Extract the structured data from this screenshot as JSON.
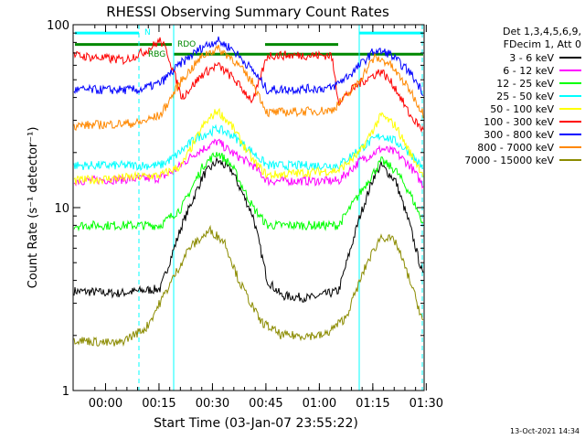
{
  "chart_data": {
    "type": "line",
    "title": "RHESSI Observing Summary Count Rates",
    "xlabel": "Start Time (03-Jan-07 23:55:22)",
    "ylabel": "Count Rate (s⁻¹ detector⁻¹)",
    "yscale": "log",
    "ylim": [
      1,
      100
    ],
    "xlim_minutes": [
      -4.5,
      94
    ],
    "x_ticks": [
      {
        "label": "00:00",
        "minute": 4.6
      },
      {
        "label": "00:15",
        "minute": 19.6
      },
      {
        "label": "00:30",
        "minute": 34.6
      },
      {
        "label": "00:45",
        "minute": 49.6
      },
      {
        "label": "01:00",
        "minute": 64.6
      },
      {
        "label": "01:15",
        "minute": 79.6
      },
      {
        "label": "01:30",
        "minute": 94.6
      }
    ],
    "y_ticks": [
      {
        "label": "1",
        "value": 1
      },
      {
        "label": "10",
        "value": 10
      },
      {
        "label": "100",
        "value": 100
      }
    ],
    "grid": false,
    "legend_position": "right",
    "legend_header": [
      "Det 1,3,4,5,6,9,",
      "FDecim 1, Att 0"
    ],
    "series": [
      {
        "name": "3 - 6 keV",
        "color": "#000000",
        "values": [
          [
            -4.5,
            3.5
          ],
          [
            8,
            3.4
          ],
          [
            20,
            3.6
          ],
          [
            26,
            8
          ],
          [
            32,
            15
          ],
          [
            36,
            18
          ],
          [
            40,
            16
          ],
          [
            46,
            9
          ],
          [
            50,
            4
          ],
          [
            54,
            3.3
          ],
          [
            62,
            3.2
          ],
          [
            70,
            3.5
          ],
          [
            76,
            9
          ],
          [
            80,
            15
          ],
          [
            82,
            17
          ],
          [
            86,
            14
          ],
          [
            90,
            8
          ],
          [
            94,
            4
          ]
        ]
      },
      {
        "name": "6 - 12 keV",
        "color": "#ff00ff",
        "values": [
          [
            -4.5,
            14
          ],
          [
            20,
            14.5
          ],
          [
            24,
            16
          ],
          [
            30,
            20
          ],
          [
            36,
            23
          ],
          [
            40,
            20
          ],
          [
            46,
            17
          ],
          [
            50,
            14
          ],
          [
            70,
            14
          ],
          [
            76,
            18
          ],
          [
            82,
            21
          ],
          [
            86,
            20
          ],
          [
            90,
            17
          ],
          [
            94,
            13
          ]
        ]
      },
      {
        "name": "12 - 25 keV",
        "color": "#00ff00",
        "values": [
          [
            -4.5,
            8
          ],
          [
            20,
            8
          ],
          [
            26,
            10
          ],
          [
            32,
            17
          ],
          [
            36,
            20
          ],
          [
            40,
            17
          ],
          [
            46,
            10
          ],
          [
            50,
            8
          ],
          [
            70,
            8
          ],
          [
            76,
            12
          ],
          [
            82,
            18
          ],
          [
            86,
            16
          ],
          [
            90,
            12
          ],
          [
            94,
            8
          ]
        ]
      },
      {
        "name": "25 - 50 keV",
        "color": "#00ffff",
        "values": [
          [
            -4.5,
            17
          ],
          [
            20,
            17
          ],
          [
            24,
            19
          ],
          [
            30,
            24
          ],
          [
            36,
            27
          ],
          [
            40,
            25
          ],
          [
            46,
            20
          ],
          [
            50,
            17
          ],
          [
            70,
            17
          ],
          [
            76,
            21
          ],
          [
            82,
            25
          ],
          [
            86,
            23
          ],
          [
            90,
            20
          ],
          [
            94,
            16
          ]
        ]
      },
      {
        "name": "50 - 100 keV",
        "color": "#ffff00",
        "values": [
          [
            -4.5,
            14
          ],
          [
            20,
            15
          ],
          [
            26,
            17
          ],
          [
            32,
            28
          ],
          [
            36,
            34
          ],
          [
            40,
            28
          ],
          [
            46,
            18
          ],
          [
            50,
            15
          ],
          [
            70,
            16
          ],
          [
            76,
            20
          ],
          [
            82,
            32
          ],
          [
            86,
            28
          ],
          [
            90,
            20
          ],
          [
            94,
            15
          ]
        ]
      },
      {
        "name": "100 - 300 keV",
        "color": "#ff0000",
        "values": [
          [
            -4.5,
            68
          ],
          [
            10,
            64
          ],
          [
            16,
            72
          ],
          [
            20,
            82
          ],
          [
            22,
            70
          ],
          [
            26,
            40
          ],
          [
            32,
            54
          ],
          [
            36,
            60
          ],
          [
            40,
            52
          ],
          [
            46,
            38
          ],
          [
            50,
            68
          ],
          [
            68,
            68
          ],
          [
            70,
            38
          ],
          [
            76,
            48
          ],
          [
            82,
            56
          ],
          [
            86,
            45
          ],
          [
            90,
            32
          ],
          [
            94,
            26
          ]
        ]
      },
      {
        "name": "300 - 800 keV",
        "color": "#0000ff",
        "values": [
          [
            -4.5,
            44
          ],
          [
            14,
            44
          ],
          [
            20,
            48
          ],
          [
            26,
            62
          ],
          [
            32,
            76
          ],
          [
            36,
            82
          ],
          [
            40,
            74
          ],
          [
            46,
            56
          ],
          [
            50,
            44
          ],
          [
            68,
            45
          ],
          [
            74,
            55
          ],
          [
            80,
            72
          ],
          [
            84,
            70
          ],
          [
            90,
            55
          ],
          [
            94,
            42
          ]
        ]
      },
      {
        "name": "800 - 7000 keV",
        "color": "#ff8800",
        "values": [
          [
            -4.5,
            28
          ],
          [
            14,
            29
          ],
          [
            20,
            32
          ],
          [
            26,
            50
          ],
          [
            32,
            68
          ],
          [
            36,
            74
          ],
          [
            40,
            66
          ],
          [
            46,
            48
          ],
          [
            50,
            33
          ],
          [
            68,
            34
          ],
          [
            74,
            44
          ],
          [
            80,
            66
          ],
          [
            84,
            62
          ],
          [
            90,
            44
          ],
          [
            94,
            32
          ]
        ]
      },
      {
        "name": "7000 - 15000 keV",
        "color": "#8b8b00",
        "values": [
          [
            -4.5,
            1.9
          ],
          [
            8,
            1.8
          ],
          [
            16,
            2.2
          ],
          [
            22,
            3.6
          ],
          [
            28,
            6
          ],
          [
            34,
            7.5
          ],
          [
            38,
            6.5
          ],
          [
            42,
            4
          ],
          [
            48,
            2.4
          ],
          [
            54,
            2
          ],
          [
            66,
            2
          ],
          [
            72,
            2.5
          ],
          [
            78,
            5
          ],
          [
            82,
            7
          ],
          [
            86,
            6.5
          ],
          [
            90,
            4
          ],
          [
            94,
            2.3
          ]
        ]
      }
    ],
    "annotations": [
      {
        "text": "N",
        "color": "#00ffff"
      },
      {
        "text": "RDO",
        "color": "#008800"
      },
      {
        "text": "RBG",
        "color": "#008800"
      }
    ]
  },
  "footer_timestamp": "13-Oct-2021 14:34"
}
